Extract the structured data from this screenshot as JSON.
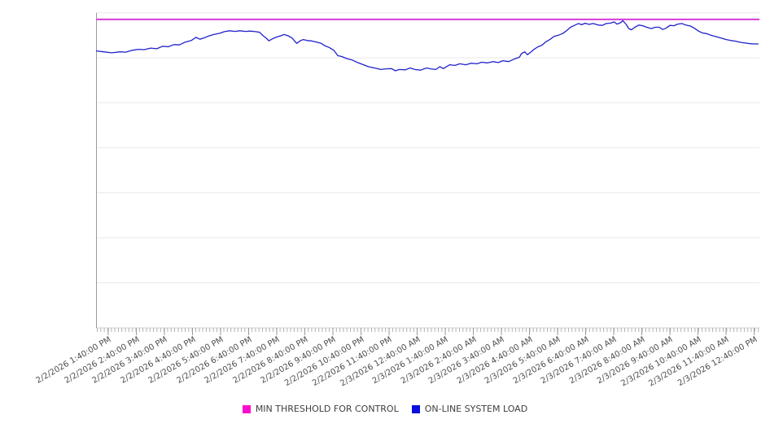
{
  "chart_data": {
    "type": "line",
    "title": "",
    "xlabel": "",
    "ylabel": "",
    "grid": "horizontal",
    "y_axis": {
      "labels_visible": false,
      "gridline_count": 7,
      "scale_note": "y axis has no tick labels; values below are normalized 0-100 of plot height",
      "ylim": [
        0,
        100
      ]
    },
    "x_axis": {
      "label_rotation_deg": -30,
      "tick_labels": [
        "2/2/2026 1:40:00 PM",
        "2/2/2026 2:40:00 PM",
        "2/2/2026 3:40:00 PM",
        "2/2/2026 4:40:00 PM",
        "2/2/2026 5:40:00 PM",
        "2/2/2026 6:40:00 PM",
        "2/2/2026 7:40:00 PM",
        "2/2/2026 8:40:00 PM",
        "2/2/2026 9:40:00 PM",
        "2/2/2026 10:40:00 PM",
        "2/2/2026 11:40:00 PM",
        "2/3/2026 12:40:00 AM",
        "2/3/2026 1:40:00 AM",
        "2/3/2026 2:40:00 AM",
        "2/3/2026 3:40:00 AM",
        "2/3/2026 4:40:00 AM",
        "2/3/2026 5:40:00 AM",
        "2/3/2026 6:40:00 AM",
        "2/3/2026 7:40:00 AM",
        "2/3/2026 8:40:00 AM",
        "2/3/2026 9:40:00 AM",
        "2/3/2026 10:40:00 AM",
        "2/3/2026 11:40:00 AM",
        "2/3/2026 12:40:00 PM"
      ]
    },
    "series": [
      {
        "name": "MIN THRESHOLD FOR CONTROL",
        "style": "horizontal-threshold",
        "color": "#d32fd3",
        "value": 97.9
      },
      {
        "name": "ON-LINE SYSTEM LOAD",
        "style": "line",
        "color": "#2121cc",
        "points": [
          [
            0.0,
            87.9
          ],
          [
            0.011,
            87.6
          ],
          [
            0.023,
            87.3
          ],
          [
            0.036,
            87.6
          ],
          [
            0.044,
            87.5
          ],
          [
            0.054,
            88.1
          ],
          [
            0.063,
            88.4
          ],
          [
            0.072,
            88.3
          ],
          [
            0.082,
            88.8
          ],
          [
            0.091,
            88.6
          ],
          [
            0.1,
            89.4
          ],
          [
            0.108,
            89.2
          ],
          [
            0.117,
            89.9
          ],
          [
            0.125,
            89.8
          ],
          [
            0.134,
            90.7
          ],
          [
            0.143,
            91.2
          ],
          [
            0.15,
            92.2
          ],
          [
            0.156,
            91.6
          ],
          [
            0.163,
            92.1
          ],
          [
            0.17,
            92.7
          ],
          [
            0.177,
            93.1
          ],
          [
            0.186,
            93.5
          ],
          [
            0.193,
            94.0
          ],
          [
            0.201,
            94.3
          ],
          [
            0.209,
            94.1
          ],
          [
            0.216,
            94.3
          ],
          [
            0.225,
            94.1
          ],
          [
            0.232,
            94.2
          ],
          [
            0.24,
            94.0
          ],
          [
            0.246,
            93.8
          ],
          [
            0.251,
            92.8
          ],
          [
            0.257,
            91.8
          ],
          [
            0.26,
            91.1
          ],
          [
            0.267,
            91.9
          ],
          [
            0.273,
            92.4
          ],
          [
            0.278,
            92.7
          ],
          [
            0.283,
            93.1
          ],
          [
            0.289,
            92.7
          ],
          [
            0.295,
            92.0
          ],
          [
            0.302,
            90.3
          ],
          [
            0.308,
            91.2
          ],
          [
            0.312,
            91.5
          ],
          [
            0.318,
            91.2
          ],
          [
            0.324,
            91.1
          ],
          [
            0.332,
            90.7
          ],
          [
            0.339,
            90.3
          ],
          [
            0.345,
            89.5
          ],
          [
            0.351,
            89.0
          ],
          [
            0.358,
            88.1
          ],
          [
            0.364,
            86.4
          ],
          [
            0.37,
            86.1
          ],
          [
            0.377,
            85.5
          ],
          [
            0.386,
            85.0
          ],
          [
            0.394,
            84.2
          ],
          [
            0.403,
            83.5
          ],
          [
            0.41,
            82.9
          ],
          [
            0.419,
            82.5
          ],
          [
            0.429,
            82.0
          ],
          [
            0.437,
            82.2
          ],
          [
            0.445,
            82.3
          ],
          [
            0.451,
            81.6
          ],
          [
            0.457,
            82.0
          ],
          [
            0.466,
            81.9
          ],
          [
            0.473,
            82.5
          ],
          [
            0.48,
            82.0
          ],
          [
            0.489,
            81.8
          ],
          [
            0.498,
            82.5
          ],
          [
            0.504,
            82.2
          ],
          [
            0.512,
            82.0
          ],
          [
            0.518,
            82.9
          ],
          [
            0.523,
            82.3
          ],
          [
            0.528,
            82.9
          ],
          [
            0.533,
            83.5
          ],
          [
            0.541,
            83.3
          ],
          [
            0.548,
            83.8
          ],
          [
            0.557,
            83.5
          ],
          [
            0.565,
            84.0
          ],
          [
            0.574,
            83.8
          ],
          [
            0.581,
            84.3
          ],
          [
            0.59,
            84.1
          ],
          [
            0.598,
            84.5
          ],
          [
            0.606,
            84.2
          ],
          [
            0.613,
            84.8
          ],
          [
            0.622,
            84.5
          ],
          [
            0.63,
            85.3
          ],
          [
            0.638,
            85.9
          ],
          [
            0.641,
            87.0
          ],
          [
            0.646,
            87.6
          ],
          [
            0.65,
            86.7
          ],
          [
            0.655,
            87.5
          ],
          [
            0.66,
            88.4
          ],
          [
            0.666,
            89.2
          ],
          [
            0.672,
            89.7
          ],
          [
            0.678,
            90.8
          ],
          [
            0.684,
            91.5
          ],
          [
            0.69,
            92.5
          ],
          [
            0.697,
            92.9
          ],
          [
            0.703,
            93.4
          ],
          [
            0.709,
            94.3
          ],
          [
            0.715,
            95.4
          ],
          [
            0.721,
            96.0
          ],
          [
            0.727,
            96.6
          ],
          [
            0.732,
            96.2
          ],
          [
            0.737,
            96.7
          ],
          [
            0.743,
            96.3
          ],
          [
            0.749,
            96.6
          ],
          [
            0.757,
            96.1
          ],
          [
            0.763,
            96.0
          ],
          [
            0.769,
            96.6
          ],
          [
            0.775,
            96.7
          ],
          [
            0.781,
            97.1
          ],
          [
            0.785,
            96.4
          ],
          [
            0.79,
            96.8
          ],
          [
            0.794,
            97.5
          ],
          [
            0.799,
            96.3
          ],
          [
            0.803,
            95.0
          ],
          [
            0.807,
            94.6
          ],
          [
            0.812,
            95.4
          ],
          [
            0.818,
            96.1
          ],
          [
            0.824,
            95.9
          ],
          [
            0.83,
            95.4
          ],
          [
            0.837,
            95.0
          ],
          [
            0.843,
            95.4
          ],
          [
            0.849,
            95.4
          ],
          [
            0.854,
            94.7
          ],
          [
            0.859,
            95.1
          ],
          [
            0.865,
            96.0
          ],
          [
            0.871,
            95.9
          ],
          [
            0.877,
            96.4
          ],
          [
            0.883,
            96.6
          ],
          [
            0.889,
            96.1
          ],
          [
            0.896,
            95.8
          ],
          [
            0.902,
            95.1
          ],
          [
            0.908,
            94.2
          ],
          [
            0.914,
            93.6
          ],
          [
            0.92,
            93.4
          ],
          [
            0.928,
            92.8
          ],
          [
            0.935,
            92.4
          ],
          [
            0.942,
            92.0
          ],
          [
            0.95,
            91.5
          ],
          [
            0.957,
            91.2
          ],
          [
            0.964,
            91.0
          ],
          [
            0.972,
            90.6
          ],
          [
            0.979,
            90.4
          ],
          [
            0.986,
            90.2
          ],
          [
            0.993,
            90.1
          ],
          [
            0.998,
            90.1
          ]
        ]
      }
    ],
    "legend": {
      "position": "bottom-center",
      "items": [
        {
          "label": "MIN THRESHOLD FOR CONTROL",
          "swatch": "#fb0dcb"
        },
        {
          "label": "ON-LINE SYSTEM LOAD",
          "swatch": "#0d0dde"
        }
      ]
    }
  },
  "colors": {
    "background": "#ffffff",
    "gridline": "#e8e8e8",
    "axis_line": "#9b9b9b",
    "baseline": "#d2d2d2",
    "tick": "#b3b3b3",
    "x_label_text": "#4d4d4d",
    "legend_text": "#3f3f3f"
  }
}
